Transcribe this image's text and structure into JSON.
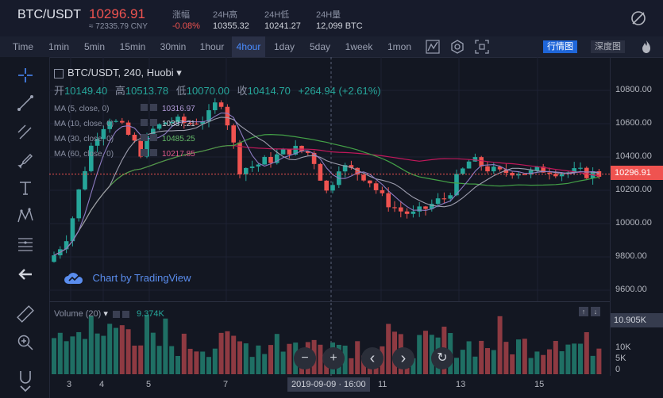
{
  "header": {
    "pair": "BTC/USDT",
    "price": "10296.91",
    "cny": "≈ 72335.79 CNY",
    "stats": [
      {
        "label": "涨幅",
        "value": "-0.08%",
        "color": "#ef5350"
      },
      {
        "label": "24H高",
        "value": "10355.32",
        "color": "#d1d4dc"
      },
      {
        "label": "24H低",
        "value": "10241.27",
        "color": "#d1d4dc"
      },
      {
        "label": "24H量",
        "value": "12,099 BTC",
        "color": "#d1d4dc"
      }
    ]
  },
  "toolbar": {
    "timeframes": [
      "Time",
      "1min",
      "5min",
      "15min",
      "30min",
      "1hour",
      "4hour",
      "1day",
      "5day",
      "1week",
      "1mon"
    ],
    "active": "4hour",
    "view_market": "行情图",
    "view_depth": "深度图"
  },
  "legend": {
    "title": "BTC/USDT, 240, Huobi",
    "open_label": "开",
    "open": "10149.40",
    "high_label": "高",
    "high": "10513.78",
    "low_label": "低",
    "low": "10070.00",
    "close_label": "收",
    "close": "10414.70",
    "change": "+264.94 (+2.61%)"
  },
  "ma": [
    {
      "label": "MA (5, close, 0)",
      "value": "10316.97",
      "color": "#b39ddb"
    },
    {
      "label": "MA (10, close, 0)",
      "value": "10387.21",
      "color": "#b2b5be"
    },
    {
      "label": "MA (30, close, 0)",
      "value": "10485.25",
      "color": "#66bb6a"
    },
    {
      "label": "MA (60, close, 0)",
      "value": "10217.85",
      "color": "#c2185b"
    }
  ],
  "watermark": "Chart by TradingView",
  "y_axis": {
    "labels": [
      "10800.00",
      "10600.00",
      "10400.00",
      "10200.00",
      "10000.00",
      "9800.00",
      "9600.00"
    ],
    "current": "10296.91"
  },
  "volume": {
    "label": "Volume (20)",
    "value": "9.374K",
    "axis_labels": [
      "10K",
      "5K",
      "0"
    ],
    "current": "10.905K"
  },
  "x_axis": {
    "labels": [
      "3",
      "4",
      "5",
      "7",
      "11",
      "13",
      "15"
    ],
    "crosshair": "2019-09-09 · 16:00"
  },
  "nav": [
    "−",
    "+",
    "‹",
    "›",
    "↻"
  ],
  "colors": {
    "up": "#26a69a",
    "down": "#ef5350",
    "accent": "#4a8cff",
    "bg": "#131722"
  }
}
